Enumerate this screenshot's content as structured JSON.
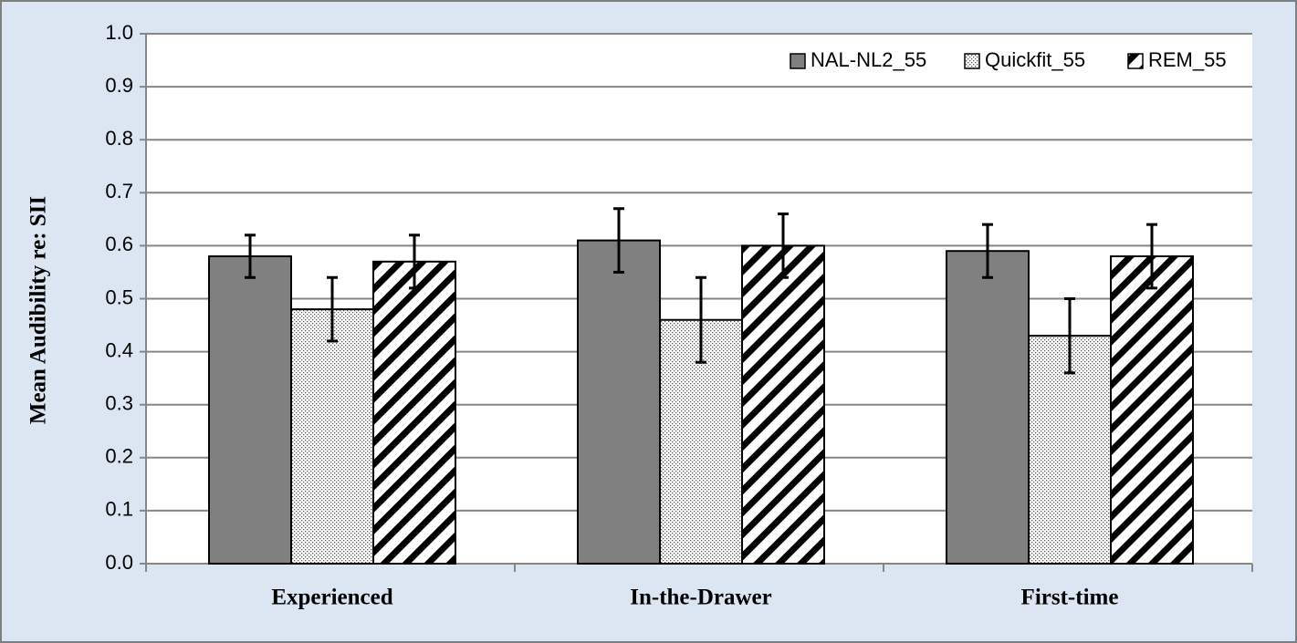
{
  "chart_data": {
    "type": "bar",
    "y_label": "Mean Audibility re: SII",
    "categories": [
      "Experienced",
      "In-the-Drawer",
      "First-time"
    ],
    "series": [
      {
        "name": "NAL-NL2_55",
        "color": "#808080",
        "pattern": "solid",
        "values": [
          0.58,
          0.61,
          0.59
        ],
        "errors": [
          0.04,
          0.06,
          0.05
        ]
      },
      {
        "name": "Quickfit_55",
        "color": "#000000",
        "pattern": "dots",
        "values": [
          0.48,
          0.46,
          0.43
        ],
        "errors": [
          0.06,
          0.08,
          0.07
        ]
      },
      {
        "name": "REM_55",
        "color": "#000000",
        "pattern": "diagonal",
        "values": [
          0.57,
          0.6,
          0.58
        ],
        "errors": [
          0.05,
          0.06,
          0.06
        ]
      }
    ],
    "ylim": [
      0,
      1
    ],
    "yticks": [
      {
        "value": 0,
        "label": "0.0"
      },
      0.1,
      0.2,
      0.3,
      0.4,
      0.5,
      0.6,
      0.7,
      0.8,
      0.9,
      {
        "value": 1,
        "label": "1.0"
      }
    ],
    "grid": true,
    "legend": "top-right"
  }
}
